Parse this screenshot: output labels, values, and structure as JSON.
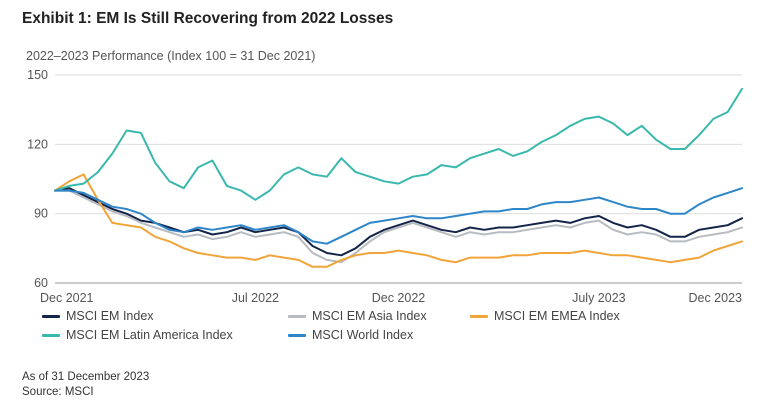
{
  "chart_data": {
    "type": "line",
    "title": "Exhibit 1: EM Is Still Recovering from 2022 Losses",
    "subtitle": "2022–2023 Performance (Index 100 = 31 Dec 2021)",
    "ylim": [
      60,
      150
    ],
    "yticks": [
      60,
      90,
      120,
      150
    ],
    "xlim": [
      0,
      24
    ],
    "xticks": [
      {
        "x": 0,
        "label": "Dec 2021"
      },
      {
        "x": 7,
        "label": "Jul 2022"
      },
      {
        "x": 12,
        "label": "Dec 2022"
      },
      {
        "x": 19,
        "label": "July 2023"
      },
      {
        "x": 24,
        "label": "Dec 2023"
      }
    ],
    "x": [
      0,
      0.5,
      1,
      1.5,
      2,
      2.5,
      3,
      3.5,
      4,
      4.5,
      5,
      5.5,
      6,
      6.5,
      7,
      7.5,
      8,
      8.5,
      9,
      9.5,
      10,
      10.5,
      11,
      11.5,
      12,
      12.5,
      13,
      13.5,
      14,
      14.5,
      15,
      15.5,
      16,
      16.5,
      17,
      17.5,
      18,
      18.5,
      19,
      19.5,
      20,
      20.5,
      21,
      21.5,
      22,
      22.5,
      23,
      23.5,
      24
    ],
    "series": [
      {
        "name": "MSCI EM Index",
        "color": "#14254a",
        "values": [
          100,
          101,
          98,
          95,
          92,
          90,
          87,
          86,
          84,
          82,
          83,
          81,
          82,
          84,
          82,
          83,
          84,
          82,
          76,
          73,
          72,
          75,
          80,
          83,
          85,
          87,
          85,
          83,
          82,
          84,
          83,
          84,
          84,
          85,
          86,
          87,
          86,
          88,
          89,
          86,
          84,
          85,
          83,
          80,
          80,
          83,
          84,
          85,
          88
        ]
      },
      {
        "name": "MSCI EM Asia Index",
        "color": "#b8bcc0",
        "values": [
          100,
          100,
          97,
          94,
          91,
          89,
          86,
          84,
          82,
          80,
          81,
          79,
          80,
          82,
          80,
          81,
          82,
          80,
          73,
          70,
          69,
          73,
          78,
          82,
          84,
          86,
          84,
          82,
          80,
          82,
          81,
          82,
          82,
          83,
          84,
          85,
          84,
          86,
          87,
          83,
          81,
          82,
          81,
          78,
          78,
          80,
          81,
          82,
          84
        ]
      },
      {
        "name": "MSCI EM EMEA Index",
        "color": "#f0a43a",
        "values": [
          100,
          104,
          107,
          96,
          86,
          85,
          84,
          80,
          78,
          75,
          73,
          72,
          71,
          71,
          70,
          72,
          71,
          70,
          67,
          67,
          70,
          72,
          73,
          73,
          74,
          73,
          72,
          70,
          69,
          71,
          71,
          71,
          72,
          72,
          73,
          73,
          73,
          74,
          73,
          72,
          72,
          71,
          70,
          69,
          70,
          71,
          74,
          76,
          78
        ]
      },
      {
        "name": "MSCI EM Latin America Index",
        "color": "#3ab8ad",
        "values": [
          100,
          102,
          103,
          108,
          116,
          126,
          125,
          112,
          104,
          101,
          110,
          113,
          102,
          100,
          96,
          100,
          107,
          110,
          107,
          106,
          114,
          108,
          106,
          104,
          103,
          106,
          107,
          111,
          110,
          114,
          116,
          118,
          115,
          117,
          121,
          124,
          128,
          131,
          132,
          129,
          124,
          128,
          122,
          118,
          118,
          124,
          131,
          134,
          144
        ]
      },
      {
        "name": "MSCI World Index",
        "color": "#2e86c8",
        "values": [
          100,
          100,
          99,
          96,
          93,
          92,
          90,
          86,
          83,
          82,
          84,
          83,
          84,
          85,
          83,
          84,
          85,
          82,
          78,
          77,
          80,
          83,
          86,
          87,
          88,
          89,
          88,
          88,
          89,
          90,
          91,
          91,
          92,
          92,
          94,
          95,
          95,
          96,
          97,
          95,
          93,
          92,
          92,
          90,
          90,
          94,
          97,
          99,
          101
        ]
      }
    ],
    "legend": [
      {
        "name": "MSCI EM Index",
        "color": "#14254a"
      },
      {
        "name": "MSCI EM Asia Index",
        "color": "#b8bcc0"
      },
      {
        "name": "MSCI EM EMEA Index",
        "color": "#f0a43a"
      },
      {
        "name": "MSCI EM Latin America Index",
        "color": "#3ab8ad"
      },
      {
        "name": "MSCI World Index",
        "color": "#2e86c8"
      }
    ],
    "grid": true
  },
  "footer": {
    "as_of": "As of 31 December 2023",
    "source": "Source: MSCI"
  }
}
